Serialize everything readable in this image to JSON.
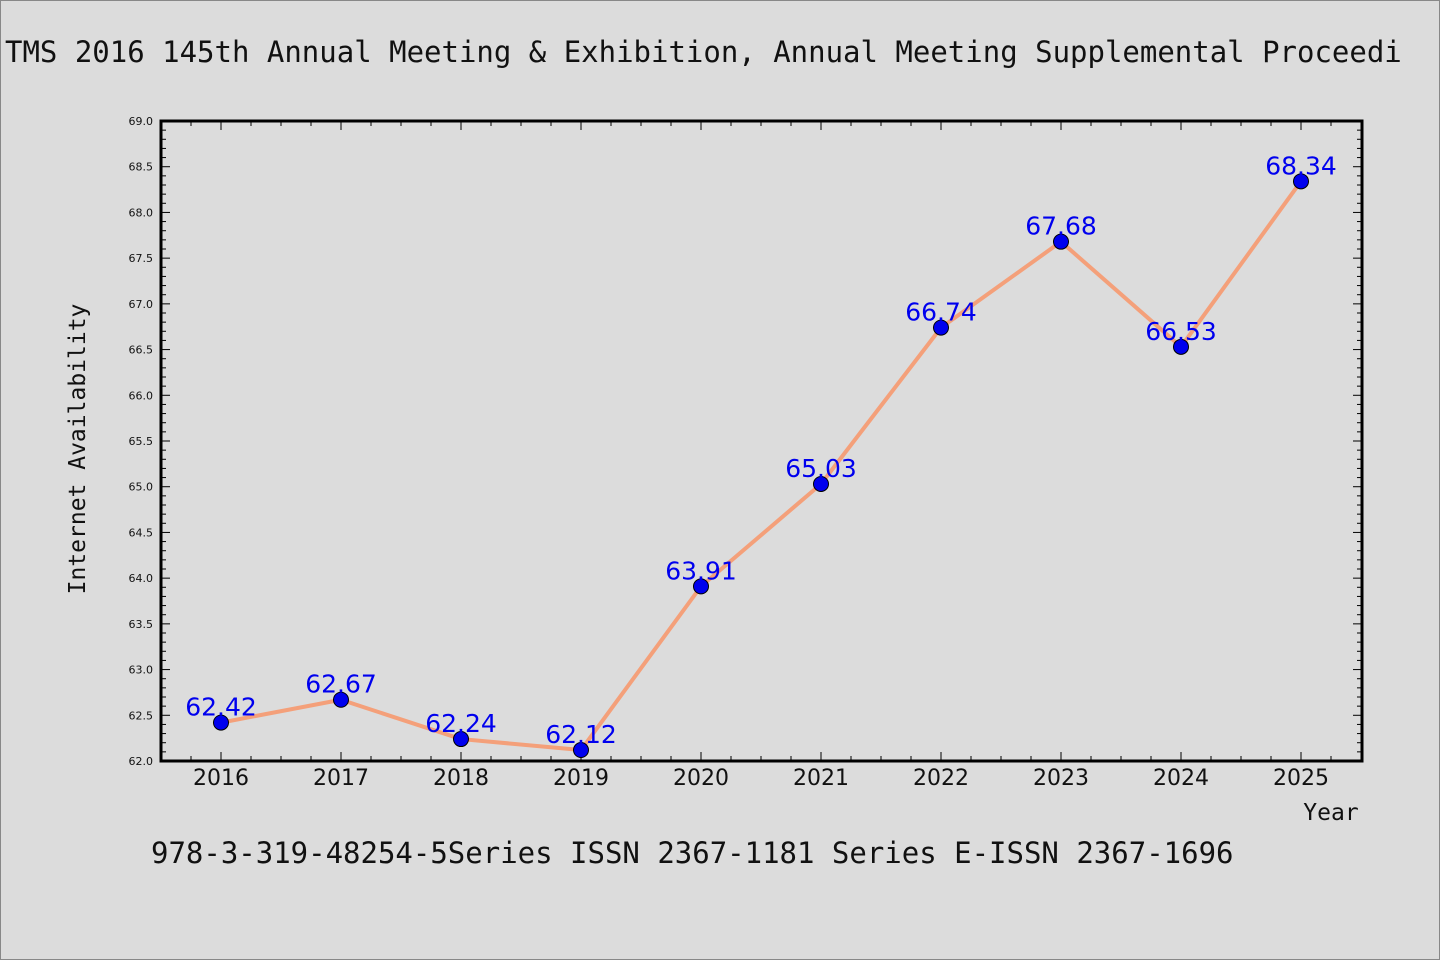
{
  "chart_data": {
    "type": "line",
    "title": "TMS 2016 145th Annual Meeting & Exhibition, Annual Meeting Supplemental Proceedi",
    "footer": "978-3-319-48254-5Series ISSN 2367-1181 Series E-ISSN 2367-1696",
    "xlabel": "Year",
    "ylabel": "Internet Availability",
    "categories": [
      "2016",
      "2017",
      "2018",
      "2019",
      "2020",
      "2021",
      "2022",
      "2023",
      "2024",
      "2025"
    ],
    "values": [
      62.42,
      62.67,
      62.24,
      62.12,
      63.91,
      65.03,
      66.74,
      67.68,
      66.53,
      68.34
    ],
    "data_labels": [
      "62.42",
      "62.67",
      "62.24",
      "62.12",
      "63.91",
      "65.03",
      "66.74",
      "67.68",
      "66.53",
      "68.34"
    ],
    "ylim": [
      62.0,
      69.0
    ],
    "yticks": [
      "62.0",
      "62.5",
      "63.0",
      "63.5",
      "64.0",
      "64.5",
      "65.0",
      "65.5",
      "66.0",
      "66.5",
      "67.0",
      "67.5",
      "68.0",
      "68.5",
      "69.0"
    ],
    "grid": false,
    "line_color": "#f4a07a",
    "marker_color": "#0000ee",
    "label_color": "#0000ee",
    "background_color": "#dcdcdc"
  }
}
